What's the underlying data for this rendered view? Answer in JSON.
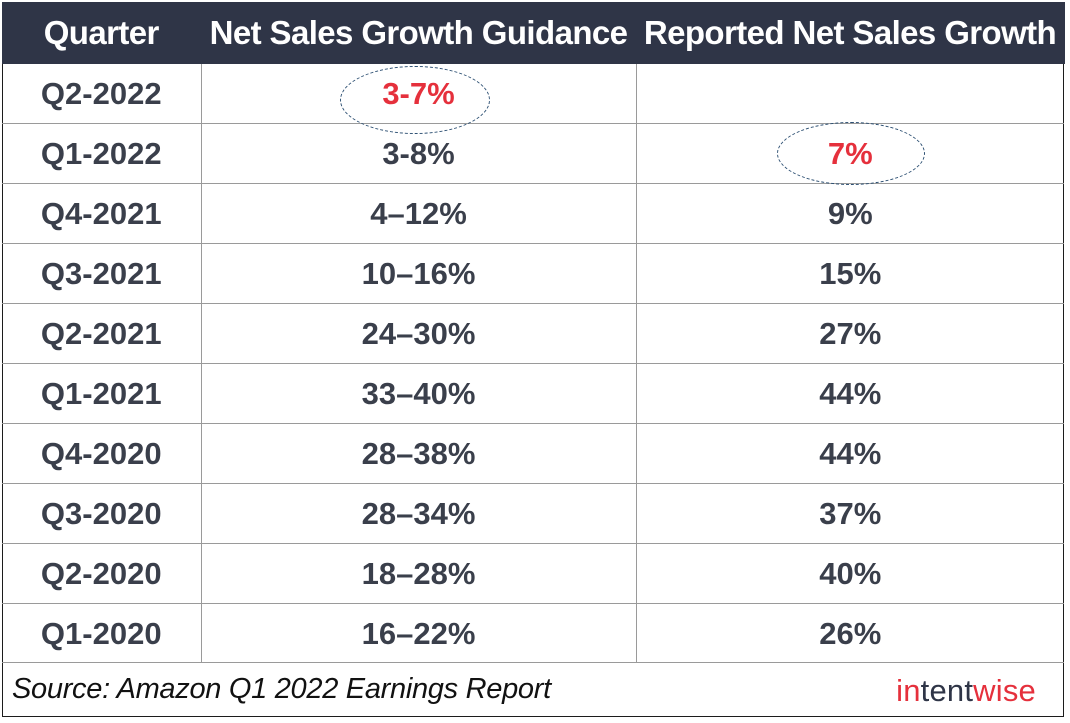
{
  "table": {
    "headers": [
      "Quarter",
      "Net Sales Growth Guidance",
      "Reported Net Sales Growth"
    ],
    "rows": [
      {
        "quarter": "Q2-2022",
        "guidance": "3-7%",
        "reported": ""
      },
      {
        "quarter": "Q1-2022",
        "guidance": "3-8%",
        "reported": "7%"
      },
      {
        "quarter": "Q4-2021",
        "guidance": "4–12%",
        "reported": "9%"
      },
      {
        "quarter": "Q3-2021",
        "guidance": "10–16%",
        "reported": "15%"
      },
      {
        "quarter": "Q2-2021",
        "guidance": "24–30%",
        "reported": "27%"
      },
      {
        "quarter": "Q1-2021",
        "guidance": "33–40%",
        "reported": "44%"
      },
      {
        "quarter": "Q4-2020",
        "guidance": "28–38%",
        "reported": "44%"
      },
      {
        "quarter": "Q3-2020",
        "guidance": "28–34%",
        "reported": "37%"
      },
      {
        "quarter": "Q2-2020",
        "guidance": "18–28%",
        "reported": "40%"
      },
      {
        "quarter": "Q1-2020",
        "guidance": "16–22%",
        "reported": "26%"
      }
    ],
    "highlighted": {
      "guidance_row": 0,
      "reported_row": 1
    }
  },
  "footer": {
    "source": "Source: Amazon Q1 2022 Earnings Report",
    "logo_part1": "in",
    "logo_part2": "tent",
    "logo_part3": "wise"
  },
  "colors": {
    "header_bg": "#2f3547",
    "highlight_text": "#e5303c",
    "body_text": "#3a3f4b",
    "oval_stroke": "#2c4f72"
  }
}
